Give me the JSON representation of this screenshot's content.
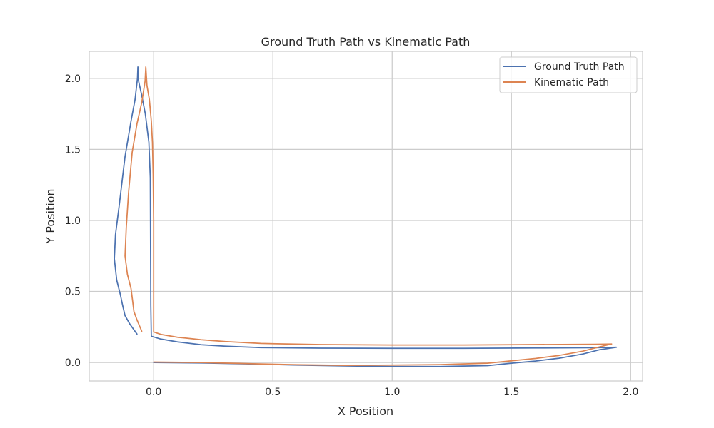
{
  "chart_data": {
    "type": "line",
    "title": "Ground Truth Path vs Kinematic Path",
    "xlabel": "X Position",
    "ylabel": "Y Position",
    "xlim": [
      -0.27,
      2.05
    ],
    "ylim": [
      -0.13,
      2.19
    ],
    "xticks": [
      0.0,
      0.5,
      1.0,
      1.5,
      2.0
    ],
    "xtick_labels": [
      "0.0",
      "0.5",
      "1.0",
      "1.5",
      "2.0"
    ],
    "yticks": [
      0.0,
      0.5,
      1.0,
      1.5,
      2.0
    ],
    "ytick_labels": [
      "0.0",
      "0.5",
      "1.0",
      "1.5",
      "2.0"
    ],
    "grid": true,
    "legend_position": "top-right",
    "series": [
      {
        "name": "Ground Truth Path",
        "color": "#4c72b0",
        "points": [
          [
            0.0,
            0.0
          ],
          [
            0.2,
            -0.003
          ],
          [
            0.4,
            -0.01
          ],
          [
            0.6,
            -0.018
          ],
          [
            0.8,
            -0.024
          ],
          [
            1.0,
            -0.028
          ],
          [
            1.2,
            -0.028
          ],
          [
            1.4,
            -0.022
          ],
          [
            1.5,
            -0.005
          ],
          [
            1.6,
            0.01
          ],
          [
            1.7,
            0.03
          ],
          [
            1.8,
            0.06
          ],
          [
            1.87,
            0.09
          ],
          [
            1.94,
            0.107
          ],
          [
            1.85,
            0.104
          ],
          [
            1.6,
            0.102
          ],
          [
            1.3,
            0.1
          ],
          [
            1.0,
            0.1
          ],
          [
            0.7,
            0.101
          ],
          [
            0.45,
            0.105
          ],
          [
            0.3,
            0.115
          ],
          [
            0.2,
            0.125
          ],
          [
            0.1,
            0.145
          ],
          [
            0.03,
            0.165
          ],
          [
            -0.01,
            0.185
          ],
          [
            -0.012,
            0.4
          ],
          [
            -0.013,
            0.8
          ],
          [
            -0.014,
            1.3
          ],
          [
            -0.02,
            1.55
          ],
          [
            -0.035,
            1.75
          ],
          [
            -0.05,
            1.88
          ],
          [
            -0.063,
            1.98
          ],
          [
            -0.066,
            2.08
          ],
          [
            -0.068,
            2.0
          ],
          [
            -0.078,
            1.85
          ],
          [
            -0.095,
            1.7
          ],
          [
            -0.12,
            1.45
          ],
          [
            -0.145,
            1.1
          ],
          [
            -0.16,
            0.9
          ],
          [
            -0.165,
            0.73
          ],
          [
            -0.155,
            0.58
          ],
          [
            -0.14,
            0.48
          ],
          [
            -0.13,
            0.4
          ],
          [
            -0.12,
            0.33
          ],
          [
            -0.1,
            0.27
          ],
          [
            -0.07,
            0.2
          ]
        ]
      },
      {
        "name": "Kinematic Path",
        "color": "#dd8452",
        "points": [
          [
            0.0,
            0.003
          ],
          [
            0.2,
            0.0
          ],
          [
            0.4,
            -0.008
          ],
          [
            0.6,
            -0.016
          ],
          [
            0.8,
            -0.02
          ],
          [
            1.0,
            -0.018
          ],
          [
            1.2,
            -0.015
          ],
          [
            1.4,
            -0.005
          ],
          [
            1.5,
            0.012
          ],
          [
            1.6,
            0.028
          ],
          [
            1.7,
            0.05
          ],
          [
            1.8,
            0.08
          ],
          [
            1.87,
            0.11
          ],
          [
            1.92,
            0.13
          ],
          [
            1.85,
            0.128
          ],
          [
            1.6,
            0.126
          ],
          [
            1.3,
            0.123
          ],
          [
            1.0,
            0.123
          ],
          [
            0.7,
            0.126
          ],
          [
            0.45,
            0.134
          ],
          [
            0.3,
            0.147
          ],
          [
            0.2,
            0.16
          ],
          [
            0.1,
            0.178
          ],
          [
            0.03,
            0.198
          ],
          [
            0.0,
            0.215
          ],
          [
            0.0,
            0.5
          ],
          [
            0.0,
            1.0
          ],
          [
            -0.002,
            1.32
          ],
          [
            -0.005,
            1.55
          ],
          [
            -0.01,
            1.7
          ],
          [
            -0.018,
            1.85
          ],
          [
            -0.028,
            1.95
          ],
          [
            -0.033,
            2.08
          ],
          [
            -0.036,
            1.98
          ],
          [
            -0.05,
            1.83
          ],
          [
            -0.07,
            1.68
          ],
          [
            -0.09,
            1.48
          ],
          [
            -0.105,
            1.2
          ],
          [
            -0.115,
            0.95
          ],
          [
            -0.12,
            0.75
          ],
          [
            -0.11,
            0.62
          ],
          [
            -0.095,
            0.52
          ],
          [
            -0.088,
            0.43
          ],
          [
            -0.083,
            0.36
          ],
          [
            -0.07,
            0.3
          ],
          [
            -0.05,
            0.22
          ]
        ]
      }
    ]
  }
}
